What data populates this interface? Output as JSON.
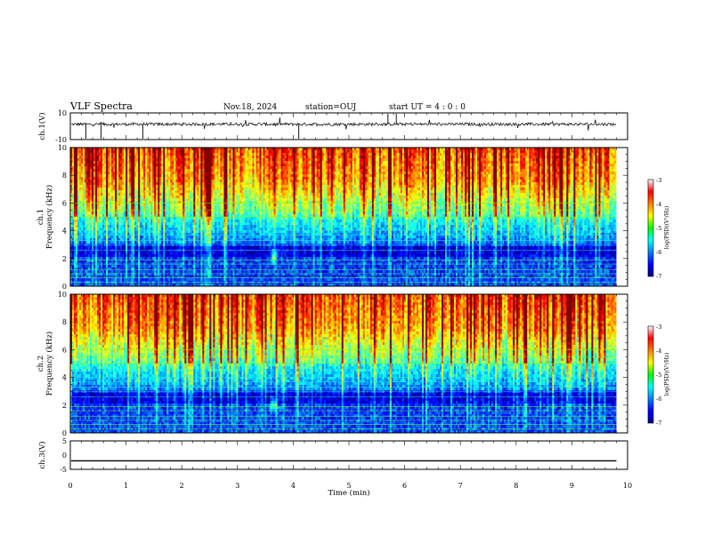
{
  "header": {
    "title": "VLF Spectra",
    "date": "Nov.18, 2024",
    "station": "station=OUJ",
    "start_ut": "start  UT =   4 : 0  : 0"
  },
  "chart_data": [
    {
      "type": "line",
      "panel": "ch1-waveform",
      "ylabel": "ch.1(V)",
      "yticks": [
        "10",
        "-10"
      ],
      "ylim": [
        -10,
        10
      ],
      "baseline": 1.5,
      "xlim": [
        0,
        10
      ],
      "color": "#000000"
    },
    {
      "type": "heatmap",
      "panel": "ch1-spectrogram",
      "ylabel": "ch.1\nFrequency  (kHz)",
      "ylabel_lines": [
        "ch.1",
        "Frequency  (kHz)"
      ],
      "ylim": [
        0,
        10
      ],
      "yticks": [
        "0",
        "2",
        "4",
        "6",
        "8",
        "10"
      ],
      "xlim": [
        0,
        9.8
      ],
      "colorbar": {
        "label": "log(PSD)(V²/Hz)",
        "range": [
          -7,
          -3
        ],
        "ticks": [
          "-3",
          "-4",
          "-5",
          "-6",
          "-7"
        ],
        "colormap": "jet"
      },
      "blob_frequency_khz": 2.2,
      "blob_time_min": 3.65
    },
    {
      "type": "heatmap",
      "panel": "ch2-spectrogram",
      "ylabel": "ch.2\nFrequency  (kHz)",
      "ylabel_lines": [
        "ch.2",
        "Frequency  (kHz)"
      ],
      "ylim": [
        0,
        10
      ],
      "yticks": [
        "0",
        "2",
        "4",
        "6",
        "8",
        "10"
      ],
      "xlim": [
        0,
        9.8
      ],
      "colorbar": {
        "label": "log(PSD)(V²/Hz)",
        "range": [
          -7,
          -3
        ],
        "ticks": [
          "-3",
          "-4",
          "-5",
          "-6",
          "-7"
        ],
        "colormap": "jet"
      },
      "blob_frequency_khz": 2.0,
      "blob_time_min": 3.65
    },
    {
      "type": "line",
      "panel": "ch3-waveform",
      "ylabel": "ch.3(V)",
      "yticks": [
        "5",
        "0",
        "-5"
      ],
      "ylim": [
        -5,
        5
      ],
      "x": [
        0,
        9.8
      ],
      "y": [
        -2,
        -2
      ],
      "color": "#000000"
    }
  ],
  "xaxis": {
    "label": "Time  (min)",
    "ticks": [
      "0",
      "1",
      "2",
      "3",
      "4",
      "5",
      "6",
      "7",
      "8",
      "9",
      "10"
    ],
    "xlim": [
      0,
      10
    ]
  }
}
